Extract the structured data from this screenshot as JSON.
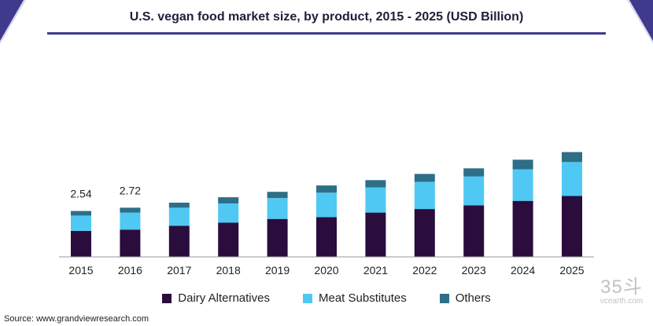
{
  "header": {
    "title": "U.S. vegan food market size, by product, 2015 - 2025 (USD Billion)"
  },
  "chart_data": {
    "type": "bar",
    "stacked": true,
    "title": "U.S. vegan food market size, by product, 2015 - 2025 (USD Billion)",
    "xlabel": "",
    "ylabel": "USD Billion",
    "grid": false,
    "categories": [
      "2015",
      "2016",
      "2017",
      "2018",
      "2019",
      "2020",
      "2021",
      "2022",
      "2023",
      "2024",
      "2025"
    ],
    "series": [
      {
        "name": "Dairy Alternatives",
        "color": "#2a0c3d",
        "values": [
          1.44,
          1.51,
          1.72,
          1.9,
          2.1,
          2.2,
          2.45,
          2.65,
          2.85,
          3.1,
          3.37
        ]
      },
      {
        "name": "Meat Substitutes",
        "color": "#4fc9f3",
        "values": [
          0.85,
          0.94,
          1.0,
          1.05,
          1.15,
          1.35,
          1.4,
          1.5,
          1.6,
          1.75,
          1.88
        ]
      },
      {
        "name": "Others",
        "color": "#2e6e87",
        "values": [
          0.25,
          0.27,
          0.28,
          0.35,
          0.35,
          0.4,
          0.4,
          0.44,
          0.45,
          0.53,
          0.55
        ]
      }
    ],
    "data_labels": [
      {
        "category": "2015",
        "text": "2.54"
      },
      {
        "category": "2016",
        "text": "2.72"
      }
    ],
    "ylim": [
      0,
      6
    ],
    "legend": "bottom"
  },
  "footer": {
    "source": "Source: www.grandviewresearch.com"
  },
  "watermark": {
    "logo": "35斗",
    "site": "vcearth.com"
  }
}
